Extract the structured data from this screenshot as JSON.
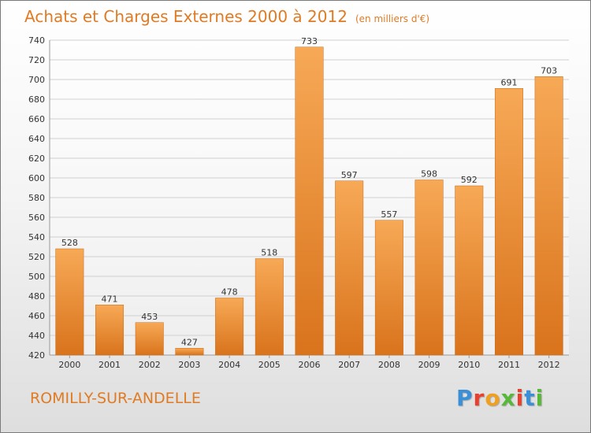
{
  "chart_data": {
    "type": "bar",
    "title": "Achats et Charges Externes 2000 à 2012",
    "subtitle": "(en milliers d'€)",
    "categories": [
      "2000",
      "2001",
      "2002",
      "2003",
      "2004",
      "2005",
      "2006",
      "2007",
      "2008",
      "2009",
      "2010",
      "2011",
      "2012"
    ],
    "values": [
      528,
      471,
      453,
      427,
      478,
      518,
      733,
      597,
      557,
      598,
      592,
      691,
      703
    ],
    "ylim": [
      420,
      740
    ],
    "yticks": [
      420,
      440,
      460,
      480,
      500,
      520,
      540,
      560,
      580,
      600,
      620,
      640,
      660,
      680,
      700,
      720,
      740
    ],
    "grid": true,
    "bar_color_top": "#f7a956",
    "bar_color_bottom": "#d9731c",
    "xlabel": "",
    "ylabel": ""
  },
  "footer": {
    "commune": "ROMILLY-SUR-ANDELLE",
    "brand": "Proxiti",
    "brand_colors": [
      "#3a8fd6",
      "#e8402f",
      "#f0a020",
      "#58b83a",
      "#e8402f",
      "#3a8fd6",
      "#58b83a"
    ]
  },
  "colors": {
    "accent": "#e07b24"
  }
}
